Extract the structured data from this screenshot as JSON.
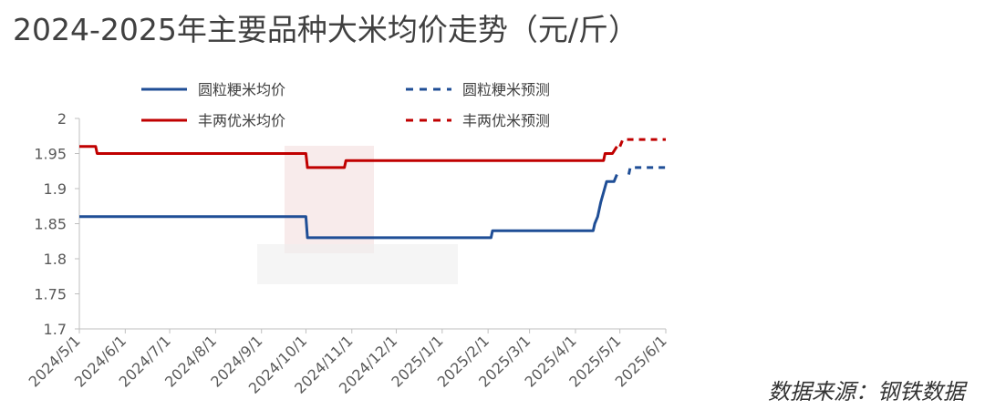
{
  "title": "2024-2025年主要品种大米均价走势（元/斤）",
  "source": "数据来源：钢铁数据",
  "chart_data": {
    "type": "line",
    "ylim": [
      1.7,
      2.0
    ],
    "yticks": [
      "2",
      "1.95",
      "1.9",
      "1.85",
      "1.8",
      "1.75",
      "1.7"
    ],
    "ytick_values": [
      2.0,
      1.95,
      1.9,
      1.85,
      1.8,
      1.75,
      1.7
    ],
    "x_start": "2024-05-01",
    "x_end": "2025-06-01",
    "xticks": [
      "2024/5/1",
      "2024/6/1",
      "2024/7/1",
      "2024/8/1",
      "2024/9/1",
      "2024/10/1",
      "2024/11/1",
      "2024/12/1",
      "2025/1/1",
      "2025/2/1",
      "2025/3/1",
      "2025/4/1",
      "2025/5/1",
      "2025/6/1"
    ],
    "xtick_dates": [
      "2024-05-01",
      "2024-06-01",
      "2024-07-01",
      "2024-08-01",
      "2024-09-01",
      "2024-10-01",
      "2024-11-01",
      "2024-12-01",
      "2025-01-01",
      "2025-02-01",
      "2025-03-01",
      "2025-04-01",
      "2025-05-01",
      "2025-06-01"
    ],
    "series": [
      {
        "name": "圆粒粳米均价",
        "color": "#1f4e96",
        "dashed": false,
        "points": [
          [
            "2024-05-01",
            1.86
          ],
          [
            "2024-10-01",
            1.86
          ],
          [
            "2024-10-02",
            1.83
          ],
          [
            "2025-02-03",
            1.83
          ],
          [
            "2025-02-04",
            1.84
          ],
          [
            "2025-04-13",
            1.84
          ],
          [
            "2025-04-14",
            1.85
          ],
          [
            "2025-04-16",
            1.86
          ],
          [
            "2025-04-18",
            1.88
          ],
          [
            "2025-04-22",
            1.91
          ],
          [
            "2025-04-27",
            1.91
          ],
          [
            "2025-04-29",
            1.92
          ]
        ]
      },
      {
        "name": "圆粒粳米预测",
        "color": "#1f4e96",
        "dashed": true,
        "points": [
          [
            "2025-05-07",
            1.92
          ],
          [
            "2025-05-08",
            1.93
          ],
          [
            "2025-06-01",
            1.93
          ]
        ]
      },
      {
        "name": "丰两优米均价",
        "color": "#c00000",
        "dashed": false,
        "points": [
          [
            "2024-05-01",
            1.96
          ],
          [
            "2024-05-12",
            1.96
          ],
          [
            "2024-05-13",
            1.95
          ],
          [
            "2024-10-01",
            1.95
          ],
          [
            "2024-10-02",
            1.93
          ],
          [
            "2024-10-27",
            1.93
          ],
          [
            "2024-10-28",
            1.94
          ],
          [
            "2025-04-20",
            1.94
          ],
          [
            "2025-04-21",
            1.95
          ],
          [
            "2025-04-26",
            1.95
          ],
          [
            "2025-04-29",
            1.96
          ]
        ]
      },
      {
        "name": "丰两优米预测",
        "color": "#c00000",
        "dashed": true,
        "points": [
          [
            "2025-05-01",
            1.96
          ],
          [
            "2025-05-03",
            1.97
          ],
          [
            "2025-06-01",
            1.97
          ]
        ]
      }
    ],
    "grid": false,
    "legend_position": "top"
  }
}
